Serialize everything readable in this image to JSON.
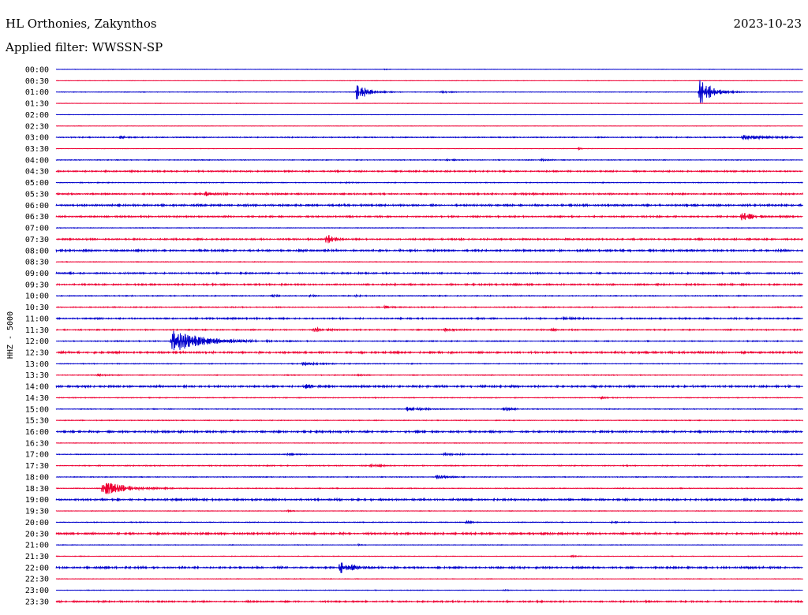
{
  "header": {
    "station": "HL Orthonies, Zakynthos",
    "date": "2023-10-23",
    "filter": "Applied filter: WWSSN-SP"
  },
  "chart_data": {
    "type": "line",
    "title": "HL Orthonies, Zakynthos",
    "ylabel": "HHZ - 5000",
    "colors": [
      "#0000cc",
      "#ee0033"
    ],
    "rows": [
      {
        "label": "00:00",
        "noise": 0.2,
        "events": [
          {
            "t": 0.44,
            "a": 1.0,
            "w": 0.004
          }
        ]
      },
      {
        "label": "00:30",
        "noise": 0.2,
        "events": []
      },
      {
        "label": "01:00",
        "noise": 0.3,
        "events": [
          {
            "t": 0.403,
            "a": 14,
            "w": 0.012
          },
          {
            "t": 0.515,
            "a": 1.5,
            "w": 0.01
          },
          {
            "t": 0.862,
            "a": 20,
            "w": 0.014
          }
        ]
      },
      {
        "label": "01:30",
        "noise": 0.2,
        "events": []
      },
      {
        "label": "02:00",
        "noise": 0.2,
        "events": []
      },
      {
        "label": "02:30",
        "noise": 0.2,
        "events": []
      },
      {
        "label": "03:00",
        "noise": 0.5,
        "events": [
          {
            "t": 0.086,
            "a": 1.5,
            "w": 0.008
          },
          {
            "t": 0.92,
            "a": 3,
            "w": 0.03
          }
        ]
      },
      {
        "label": "03:30",
        "noise": 0.2,
        "events": [
          {
            "t": 0.7,
            "a": 1.0,
            "w": 0.005
          }
        ]
      },
      {
        "label": "04:00",
        "noise": 0.4,
        "events": [
          {
            "t": 0.52,
            "a": 1.0,
            "w": 0.01
          },
          {
            "t": 0.65,
            "a": 1.0,
            "w": 0.01
          }
        ]
      },
      {
        "label": "04:30",
        "noise": 0.8,
        "events": []
      },
      {
        "label": "05:00",
        "noise": 0.4,
        "events": [
          {
            "t": 0.39,
            "a": 1.0,
            "w": 0.006
          }
        ]
      },
      {
        "label": "05:30",
        "noise": 0.8,
        "events": [
          {
            "t": 0.2,
            "a": 2.5,
            "w": 0.01
          },
          {
            "t": 0.63,
            "a": 1.5,
            "w": 0.01
          }
        ]
      },
      {
        "label": "06:00",
        "noise": 1.0,
        "events": []
      },
      {
        "label": "06:30",
        "noise": 0.8,
        "events": [
          {
            "t": 0.918,
            "a": 6,
            "w": 0.014
          }
        ]
      },
      {
        "label": "07:00",
        "noise": 0.3,
        "events": []
      },
      {
        "label": "07:30",
        "noise": 0.8,
        "events": [
          {
            "t": 0.362,
            "a": 6,
            "w": 0.009
          }
        ]
      },
      {
        "label": "08:00",
        "noise": 1.0,
        "events": []
      },
      {
        "label": "08:30",
        "noise": 0.3,
        "events": []
      },
      {
        "label": "09:00",
        "noise": 0.8,
        "events": []
      },
      {
        "label": "09:30",
        "noise": 0.8,
        "events": []
      },
      {
        "label": "10:00",
        "noise": 0.5,
        "events": [
          {
            "t": 0.29,
            "a": 1.5,
            "w": 0.006
          },
          {
            "t": 0.34,
            "a": 1.5,
            "w": 0.006
          },
          {
            "t": 0.4,
            "a": 1.5,
            "w": 0.005
          }
        ]
      },
      {
        "label": "10:30",
        "noise": 0.5,
        "events": [
          {
            "t": 0.44,
            "a": 1.5,
            "w": 0.008
          }
        ]
      },
      {
        "label": "11:00",
        "noise": 0.8,
        "events": [
          {
            "t": 0.68,
            "a": 2,
            "w": 0.005
          }
        ]
      },
      {
        "label": "11:30",
        "noise": 0.6,
        "events": [
          {
            "t": 0.345,
            "a": 4,
            "w": 0.012
          },
          {
            "t": 0.52,
            "a": 1.5,
            "w": 0.01
          },
          {
            "t": 0.66,
            "a": 1.5,
            "w": 0.01
          }
        ]
      },
      {
        "label": "12:00",
        "noise": 0.5,
        "events": [
          {
            "t": 0.155,
            "a": 14,
            "w": 0.04
          }
        ]
      },
      {
        "label": "12:30",
        "noise": 1.0,
        "events": []
      },
      {
        "label": "13:00",
        "noise": 0.4,
        "events": [
          {
            "t": 0.33,
            "a": 2,
            "w": 0.02
          }
        ]
      },
      {
        "label": "13:30",
        "noise": 0.4,
        "events": [
          {
            "t": 0.056,
            "a": 1.5,
            "w": 0.01
          },
          {
            "t": 0.4,
            "a": 1.0,
            "w": 0.008
          }
        ]
      },
      {
        "label": "14:00",
        "noise": 1.0,
        "events": [
          {
            "t": 0.335,
            "a": 2.5,
            "w": 0.01
          }
        ]
      },
      {
        "label": "14:30",
        "noise": 0.4,
        "events": [
          {
            "t": 0.73,
            "a": 1.5,
            "w": 0.006
          }
        ]
      },
      {
        "label": "15:00",
        "noise": 0.4,
        "events": [
          {
            "t": 0.47,
            "a": 3,
            "w": 0.02
          },
          {
            "t": 0.6,
            "a": 2.5,
            "w": 0.01
          }
        ]
      },
      {
        "label": "15:30",
        "noise": 0.4,
        "events": []
      },
      {
        "label": "16:00",
        "noise": 1.0,
        "events": []
      },
      {
        "label": "16:30",
        "noise": 0.3,
        "events": []
      },
      {
        "label": "17:00",
        "noise": 0.4,
        "events": [
          {
            "t": 0.31,
            "a": 1.5,
            "w": 0.01
          },
          {
            "t": 0.52,
            "a": 1.5,
            "w": 0.02
          }
        ]
      },
      {
        "label": "17:30",
        "noise": 0.5,
        "events": [
          {
            "t": 0.42,
            "a": 1.5,
            "w": 0.01
          }
        ]
      },
      {
        "label": "18:00",
        "noise": 0.4,
        "events": [
          {
            "t": 0.51,
            "a": 3,
            "w": 0.012
          }
        ]
      },
      {
        "label": "18:30",
        "noise": 0.4,
        "events": [
          {
            "t": 0.062,
            "a": 10,
            "w": 0.028
          }
        ]
      },
      {
        "label": "19:00",
        "noise": 1.0,
        "events": []
      },
      {
        "label": "19:30",
        "noise": 0.3,
        "events": [
          {
            "t": 0.31,
            "a": 1.0,
            "w": 0.004
          }
        ]
      },
      {
        "label": "20:00",
        "noise": 0.4,
        "events": [
          {
            "t": 0.55,
            "a": 2,
            "w": 0.005
          },
          {
            "t": 0.745,
            "a": 2,
            "w": 0.005
          }
        ]
      },
      {
        "label": "20:30",
        "noise": 1.0,
        "events": []
      },
      {
        "label": "21:00",
        "noise": 0.3,
        "events": [
          {
            "t": 0.405,
            "a": 1.5,
            "w": 0.004
          }
        ]
      },
      {
        "label": "21:30",
        "noise": 0.3,
        "events": [
          {
            "t": 0.69,
            "a": 1.5,
            "w": 0.005
          }
        ]
      },
      {
        "label": "22:00",
        "noise": 1.0,
        "events": [
          {
            "t": 0.38,
            "a": 7,
            "w": 0.014
          }
        ]
      },
      {
        "label": "22:30",
        "noise": 0.3,
        "events": []
      },
      {
        "label": "23:00",
        "noise": 0.3,
        "events": [
          {
            "t": 0.6,
            "a": 1.0,
            "w": 0.004
          },
          {
            "t": 0.69,
            "a": 1.0,
            "w": 0.004
          }
        ]
      },
      {
        "label": "23:30",
        "noise": 0.8,
        "events": []
      }
    ]
  }
}
